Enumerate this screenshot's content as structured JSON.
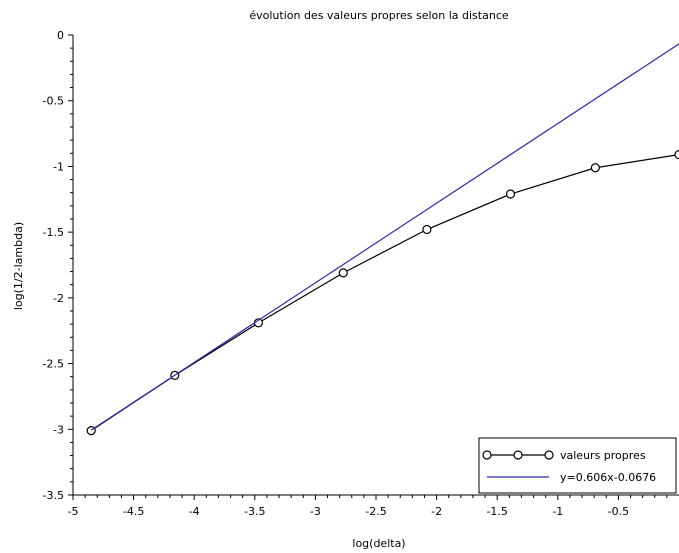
{
  "chart_data": {
    "type": "line",
    "title": "évolution des valeurs propres selon la distance",
    "xlabel": "log(delta)",
    "ylabel": "log(1/2-lambda)",
    "xlim": [
      -5,
      0
    ],
    "ylim": [
      -3.5,
      0
    ],
    "xticks": [
      -5,
      -4.5,
      -4,
      -3.5,
      -3,
      -2.5,
      -2,
      -1.5,
      -1,
      -0.5
    ],
    "xtick_labels": [
      "-5",
      "-4.5",
      "-4",
      "-3.5",
      "-3",
      "-2.5",
      "-2",
      "-1.5",
      "-1",
      "-0.5"
    ],
    "yticks": [
      0,
      -0.5,
      -1,
      -1.5,
      -2,
      -2.5,
      -3,
      -3.5
    ],
    "ytick_labels": [
      "0",
      "-0.5",
      "-1",
      "-1.5",
      "-2",
      "-2.5",
      "-3",
      "-3.5"
    ],
    "grid": false,
    "legend_position": "bottom-right",
    "series": [
      {
        "name": "valeurs propres",
        "style": "line-markers",
        "marker": "circle-open",
        "color": "#000000",
        "x": [
          -4.85,
          -4.16,
          -3.47,
          -2.77,
          -2.08,
          -1.39,
          -0.69,
          0
        ],
        "y": [
          -3.01,
          -2.59,
          -2.19,
          -1.81,
          -1.48,
          -1.21,
          -1.01,
          -0.91
        ]
      },
      {
        "name": "y=0.606x-0.0676",
        "style": "line",
        "color": "#2a2aa8",
        "x": [
          -4.85,
          0
        ],
        "y": [
          -3.0067,
          -0.0676
        ]
      }
    ]
  }
}
